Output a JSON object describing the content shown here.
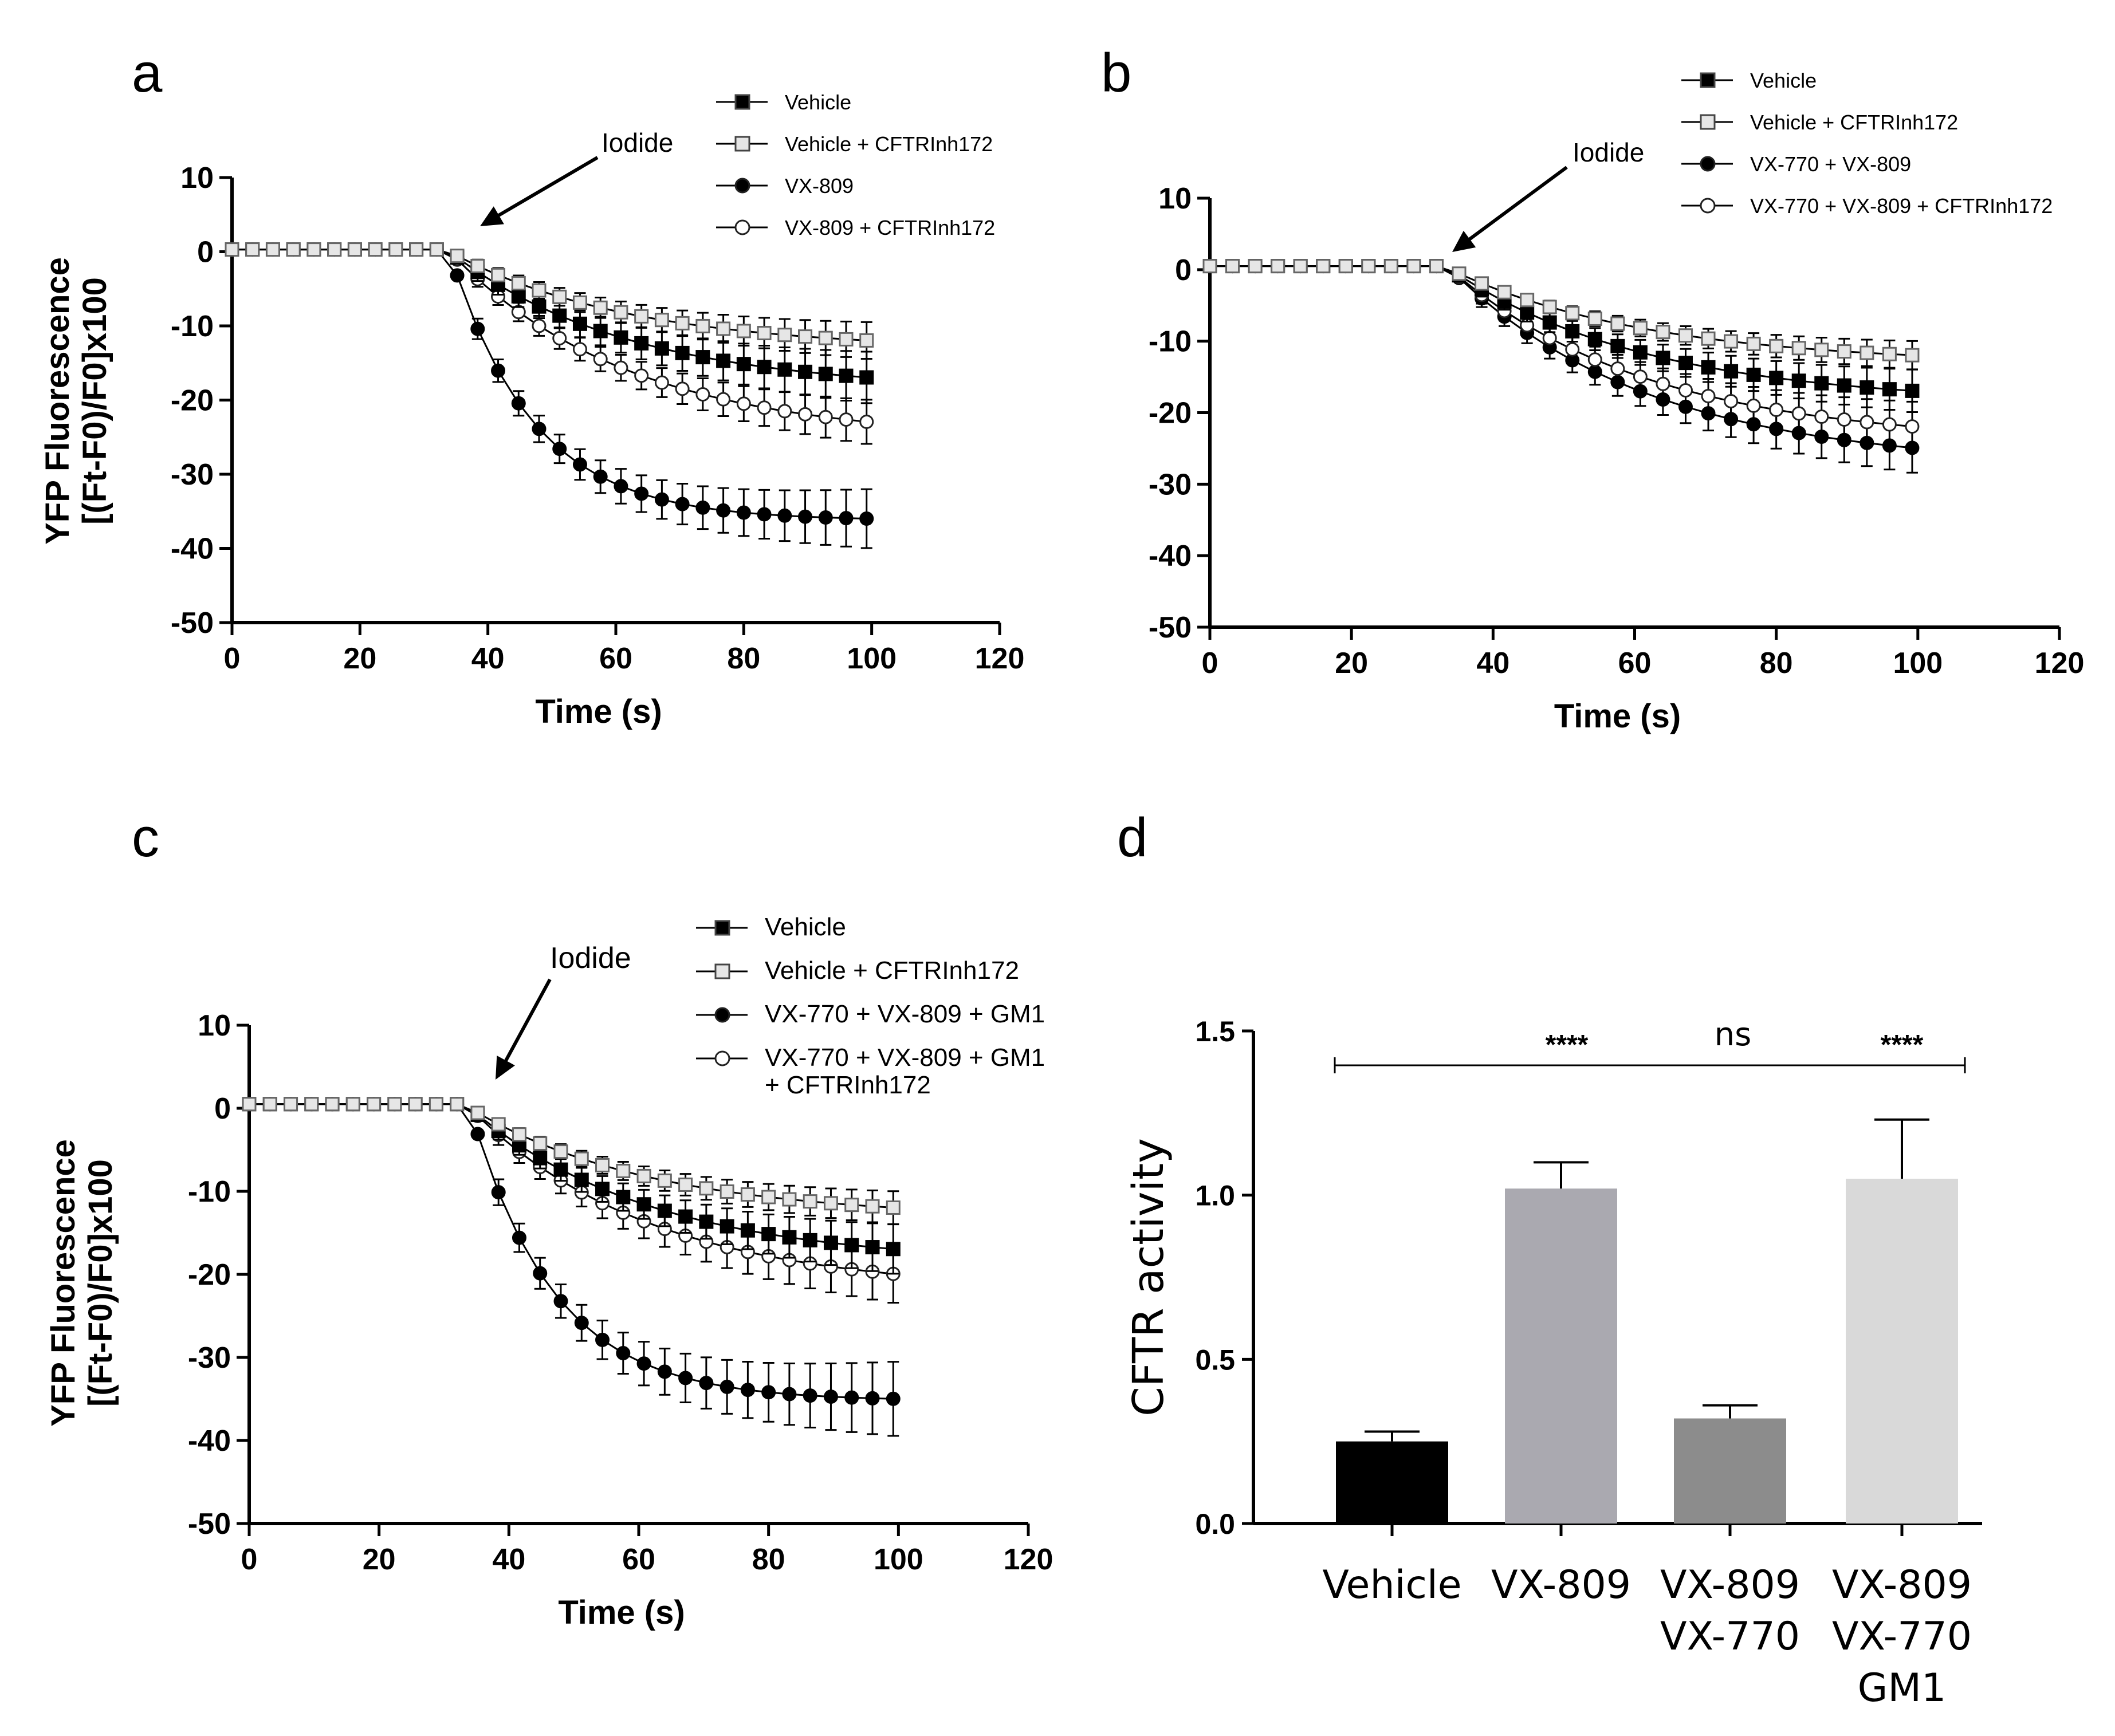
{
  "chart_data": [
    {
      "type": "line",
      "panel": "a",
      "annotation": "Iodide",
      "annotation_x": 38,
      "xlabel": "Time (s)",
      "ylabel_lines": [
        "YFP Fluorescence",
        "[(Ft-F0)/F0]x100"
      ],
      "xlim": [
        0,
        120
      ],
      "ylim": [
        -50,
        10
      ],
      "xticks": [
        "0",
        "20",
        "40",
        "60",
        "80",
        "100",
        "120"
      ],
      "yticks": [
        "10",
        "0",
        "-10",
        "-20",
        "-30",
        "-40",
        "-50"
      ],
      "series": [
        {
          "name": "Vehicle",
          "marker": "square-filled",
          "final": -17,
          "err_final": 3.5
        },
        {
          "name": "Vehicle + CFTRInh172",
          "marker": "square-open",
          "final": -12,
          "err_final": 2.5
        },
        {
          "name": "VX-809",
          "marker": "circle-filled",
          "final": -36,
          "err_final": 4
        },
        {
          "name": "VX-809 + CFTRInh172",
          "marker": "circle-open",
          "final": -23,
          "err_final": 3
        }
      ]
    },
    {
      "type": "line",
      "panel": "b",
      "annotation": "Iodide",
      "annotation_x": 34,
      "xlabel": "Time (s)",
      "xlim": [
        0,
        120
      ],
      "ylim": [
        -50,
        10
      ],
      "xticks": [
        "0",
        "20",
        "40",
        "60",
        "80",
        "100",
        "120"
      ],
      "yticks": [
        "10",
        "0",
        "-10",
        "-20",
        "-30",
        "-40",
        "-50"
      ],
      "series": [
        {
          "name": "Vehicle",
          "marker": "square-filled",
          "final": -17,
          "err_final": 3
        },
        {
          "name": "Vehicle + CFTRInh172",
          "marker": "square-open",
          "final": -12,
          "err_final": 2
        },
        {
          "name": "VX-770 + VX-809",
          "marker": "circle-filled",
          "final": -25,
          "err_final": 3.5
        },
        {
          "name": "VX-770 + VX-809 + CFTRInh172",
          "marker": "circle-open",
          "final": -22,
          "err_final": 3.5
        }
      ]
    },
    {
      "type": "line",
      "panel": "c",
      "annotation": "Iodide",
      "annotation_x": 37,
      "xlabel": "Time (s)",
      "ylabel_lines": [
        "YFP Fluorescence",
        "[(Ft-F0)/F0]x100"
      ],
      "xlim": [
        0,
        120
      ],
      "ylim": [
        -50,
        10
      ],
      "xticks": [
        "0",
        "20",
        "40",
        "60",
        "80",
        "100",
        "120"
      ],
      "yticks": [
        "10",
        "0",
        "-10",
        "-20",
        "-30",
        "-40",
        "-50"
      ],
      "series": [
        {
          "name": "Vehicle",
          "marker": "square-filled",
          "final": -17,
          "err_final": 3
        },
        {
          "name": "Vehicle + CFTRInh172",
          "marker": "square-open",
          "final": -12,
          "err_final": 2
        },
        {
          "name": "VX-770 + VX-809 + GM1",
          "marker": "circle-filled",
          "final": -35,
          "err_final": 4.5
        },
        {
          "name": "VX-770 + VX-809 + GM1 + CFTRInh172",
          "legend_lines": [
            "VX-770 + VX-809 + GM1",
            "+ CFTRInh172"
          ],
          "marker": "circle-open",
          "final": -20,
          "err_final": 3.5
        }
      ]
    },
    {
      "type": "bar",
      "panel": "d",
      "ylabel": "CFTR activity",
      "ylim": [
        0,
        1.5
      ],
      "yticks": [
        "0.0",
        "0.5",
        "1.0",
        "1.5"
      ],
      "categories": [
        {
          "lines": [
            "Vehicle"
          ],
          "value": 0.25,
          "error": 0.03,
          "color": "#000000"
        },
        {
          "lines": [
            "VX-809"
          ],
          "value": 1.02,
          "error": 0.08,
          "color": "#aaa9b0"
        },
        {
          "lines": [
            "VX-809",
            "VX-770"
          ],
          "value": 0.32,
          "error": 0.04,
          "color": "#8c8c8c"
        },
        {
          "lines": [
            "VX-809",
            "VX-770",
            "GM1"
          ],
          "value": 1.05,
          "error": 0.18,
          "color": "#d9d9d9"
        }
      ],
      "significance": [
        "****",
        "ns",
        "****"
      ]
    }
  ]
}
